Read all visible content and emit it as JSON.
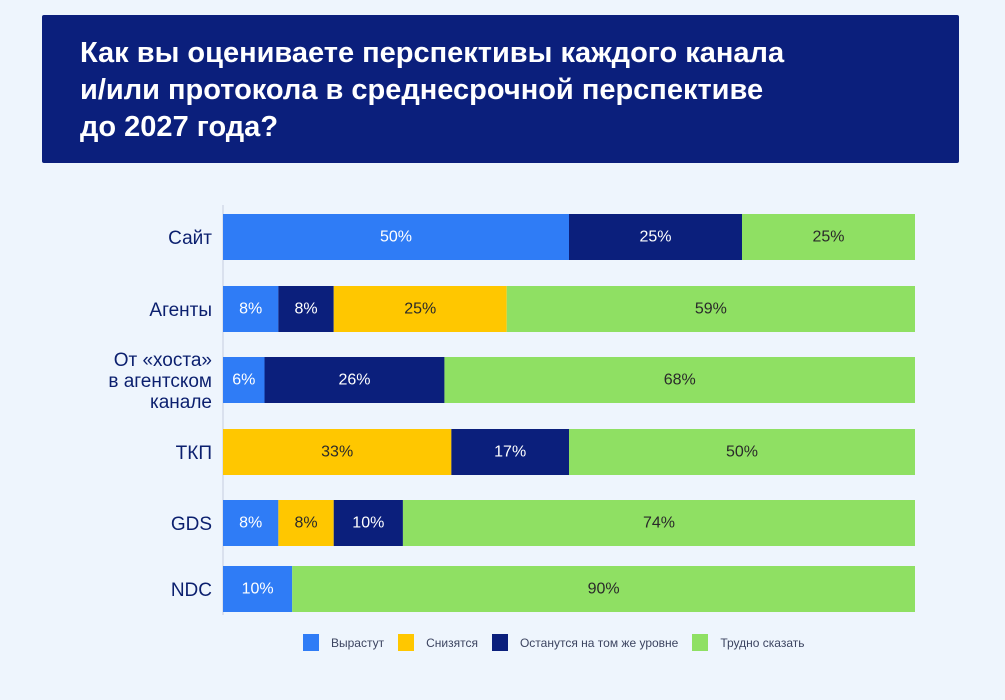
{
  "chart_data": {
    "type": "bar",
    "orientation": "horizontal-stacked",
    "title": "Как вы оцениваете перспективы каждого канала и/или протокола в среднесрочной перспективе до 2027 года?",
    "series": [
      {
        "key": "grow",
        "name": "Вырастут",
        "color": "#2f7cf6"
      },
      {
        "key": "down",
        "name": "Снизятся",
        "color": "#ffc700"
      },
      {
        "key": "same",
        "name": "Останутся на том же уровне",
        "color": "#0b1f7c"
      },
      {
        "key": "hard",
        "name": "Трудно сказать",
        "color": "#8fe063"
      }
    ],
    "categories": [
      {
        "label": [
          "Сайт"
        ],
        "segments": [
          {
            "s": "grow",
            "v": 50
          },
          {
            "s": "same",
            "v": 25
          },
          {
            "s": "hard",
            "v": 25
          }
        ]
      },
      {
        "label": [
          "Агенты"
        ],
        "segments": [
          {
            "s": "grow",
            "v": 8
          },
          {
            "s": "same",
            "v": 8
          },
          {
            "s": "down",
            "v": 25
          },
          {
            "s": "hard",
            "v": 59
          }
        ]
      },
      {
        "label": [
          "От «хоста»",
          "в агентском",
          "канале"
        ],
        "segments": [
          {
            "s": "grow",
            "v": 6
          },
          {
            "s": "same",
            "v": 26
          },
          {
            "s": "hard",
            "v": 68
          }
        ]
      },
      {
        "label": [
          "ТКП"
        ],
        "segments": [
          {
            "s": "down",
            "v": 33
          },
          {
            "s": "same",
            "v": 17
          },
          {
            "s": "hard",
            "v": 50
          }
        ]
      },
      {
        "label": [
          "GDS"
        ],
        "segments": [
          {
            "s": "grow",
            "v": 8
          },
          {
            "s": "down",
            "v": 8
          },
          {
            "s": "same",
            "v": 10
          },
          {
            "s": "hard",
            "v": 74
          }
        ]
      },
      {
        "label": [
          "NDC"
        ],
        "segments": [
          {
            "s": "grow",
            "v": 10
          },
          {
            "s": "hard",
            "v": 90
          }
        ]
      }
    ],
    "xlim": [
      0,
      100
    ],
    "legend": "bottom"
  },
  "title_lines": [
    "Как вы оцениваете перспективы каждого канала",
    "и/или протокола в среднесрочной перспективе",
    "до 2027 года?"
  ]
}
